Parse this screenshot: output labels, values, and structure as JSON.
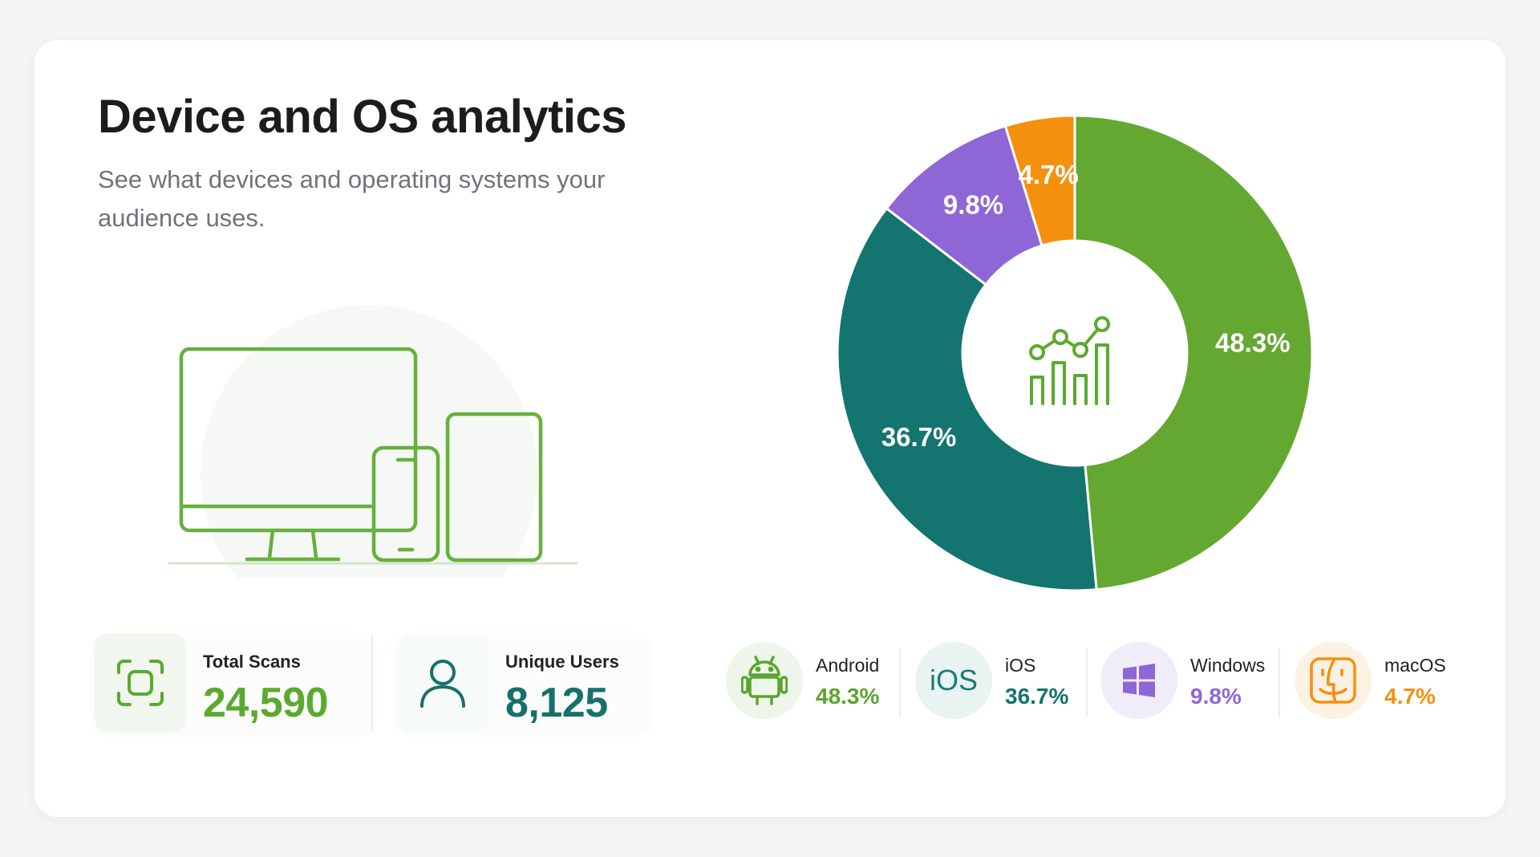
{
  "header": {
    "title": "Device and OS analytics",
    "subtitle": "See what devices and operating systems your audience uses."
  },
  "stats": [
    {
      "label": "Total Scans",
      "value": "24,590",
      "icon": "scan-frame-icon",
      "color": "#5aaa2f"
    },
    {
      "label": "Unique Users",
      "value": "8,125",
      "icon": "user-icon",
      "color": "#17706c"
    }
  ],
  "chart_data": {
    "type": "pie",
    "donut": true,
    "title": "",
    "center_icon": "analytics-chart-icon",
    "categories": [
      "Android",
      "iOS",
      "Windows",
      "macOS"
    ],
    "values": [
      48.3,
      36.7,
      9.8,
      4.7
    ],
    "labels": [
      "48.3%",
      "36.7%",
      "9.8%",
      "4.7%"
    ],
    "colors": [
      "#64a832",
      "#137470",
      "#8f66d6",
      "#f5900e"
    ],
    "legend_position": "bottom"
  },
  "legend": [
    {
      "name": "Android",
      "pct": "48.3%",
      "icon": "android-icon",
      "color": "#5aa52e",
      "bg": "#eef5ea"
    },
    {
      "name": "iOS",
      "pct": "36.7%",
      "icon": "ios-text-icon",
      "icon_text": "iOS",
      "color": "#137470",
      "bg": "#e9f3f2"
    },
    {
      "name": "Windows",
      "pct": "9.8%",
      "icon": "windows-icon",
      "color": "#8f66d6",
      "bg": "#f1ecfa"
    },
    {
      "name": "macOS",
      "pct": "4.7%",
      "icon": "macos-finder-icon",
      "color": "#f5900e",
      "bg": "#fdf1e4"
    }
  ]
}
